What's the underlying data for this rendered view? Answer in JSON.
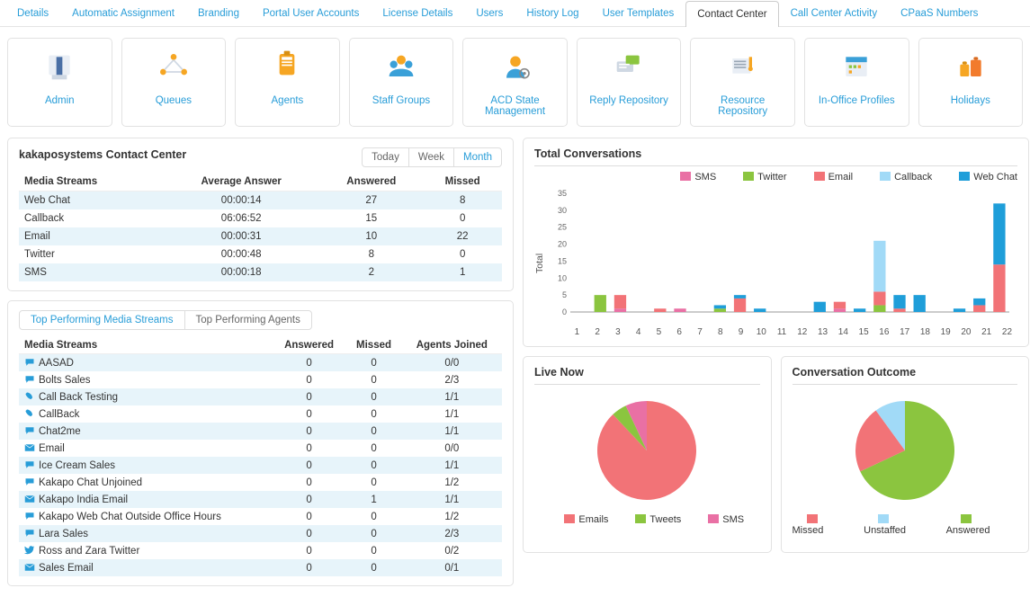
{
  "colors": {
    "link": "#289dd8",
    "border": "#e2e2e2",
    "stripe": "#e7f4fa",
    "sms": "#e970a4",
    "twitter": "#8bc53f",
    "email": "#f27377",
    "callback": "#a1daf7",
    "webchat": "#1f9ed9",
    "missed": "#f27377",
    "unstaffed": "#a1daf7",
    "answered": "#8bc53f"
  },
  "topTabs": {
    "items": [
      "Details",
      "Automatic Assignment",
      "Branding",
      "Portal User Accounts",
      "License Details",
      "Users",
      "History Log",
      "User Templates",
      "Contact Center",
      "Call Center Activity",
      "CPaaS Numbers"
    ],
    "activeIndex": 8
  },
  "iconCards": [
    {
      "key": "admin",
      "label": "Admin"
    },
    {
      "key": "queues",
      "label": "Queues"
    },
    {
      "key": "agents",
      "label": "Agents"
    },
    {
      "key": "staff",
      "label": "Staff Groups"
    },
    {
      "key": "acd",
      "label": "ACD State Management"
    },
    {
      "key": "reply",
      "label": "Reply Repository"
    },
    {
      "key": "resource",
      "label": "Resource Repository"
    },
    {
      "key": "inoffice",
      "label": "In-Office Profiles"
    },
    {
      "key": "holidays",
      "label": "Holidays"
    }
  ],
  "summary": {
    "title": "kakaposystems Contact Center",
    "ranges": [
      "Today",
      "Week",
      "Month"
    ],
    "rangeSelected": 2,
    "columns": [
      "Media Streams",
      "Average Answer",
      "Answered",
      "Missed"
    ],
    "rows": [
      [
        "Web Chat",
        "00:00:14",
        "27",
        "8"
      ],
      [
        "Callback",
        "06:06:52",
        "15",
        "0"
      ],
      [
        "Email",
        "00:00:31",
        "10",
        "22"
      ],
      [
        "Twitter",
        "00:00:48",
        "8",
        "0"
      ],
      [
        "SMS",
        "00:00:18",
        "2",
        "1"
      ]
    ]
  },
  "topPerf": {
    "tabs": [
      "Top Performing Media Streams",
      "Top Performing Agents"
    ],
    "tabSelected": 0,
    "columns": [
      "Media Streams",
      "Answered",
      "Missed",
      "Agents Joined"
    ],
    "rows": [
      {
        "icon": "chat",
        "name": "AASAD",
        "ans": "0",
        "mis": "0",
        "aj": "0/0"
      },
      {
        "icon": "chat",
        "name": "Bolts Sales",
        "ans": "0",
        "mis": "0",
        "aj": "2/3"
      },
      {
        "icon": "phone",
        "name": "Call Back Testing",
        "ans": "0",
        "mis": "0",
        "aj": "1/1"
      },
      {
        "icon": "phone",
        "name": "CallBack",
        "ans": "0",
        "mis": "0",
        "aj": "1/1"
      },
      {
        "icon": "chat",
        "name": "Chat2me",
        "ans": "0",
        "mis": "0",
        "aj": "1/1"
      },
      {
        "icon": "mail",
        "name": "Email",
        "ans": "0",
        "mis": "0",
        "aj": "0/0"
      },
      {
        "icon": "chat",
        "name": "Ice Cream Sales",
        "ans": "0",
        "mis": "0",
        "aj": "1/1"
      },
      {
        "icon": "chat",
        "name": "Kakapo Chat Unjoined",
        "ans": "0",
        "mis": "0",
        "aj": "1/2"
      },
      {
        "icon": "mail",
        "name": "Kakapo India Email",
        "ans": "0",
        "mis": "1",
        "aj": "1/1"
      },
      {
        "icon": "chat",
        "name": "Kakapo Web Chat Outside Office Hours",
        "ans": "0",
        "mis": "0",
        "aj": "1/2"
      },
      {
        "icon": "chat",
        "name": "Lara Sales",
        "ans": "0",
        "mis": "0",
        "aj": "2/3"
      },
      {
        "icon": "twitter",
        "name": "Ross and Zara Twitter",
        "ans": "0",
        "mis": "0",
        "aj": "0/2"
      },
      {
        "icon": "mail",
        "name": "Sales Email",
        "ans": "0",
        "mis": "0",
        "aj": "0/1"
      }
    ]
  },
  "totalConv": {
    "title": "Total Conversations",
    "ylabel": "Total",
    "ylim": [
      0,
      35
    ],
    "ytick_step": 5,
    "categories": [
      "1",
      "2",
      "3",
      "4",
      "5",
      "6",
      "7",
      "8",
      "9",
      "10",
      "11",
      "12",
      "13",
      "14",
      "15",
      "16",
      "17",
      "18",
      "19",
      "20",
      "21",
      "22"
    ],
    "seriesOrder": [
      "sms",
      "twitter",
      "email",
      "callback",
      "webchat"
    ],
    "legend": [
      {
        "key": "sms",
        "label": "SMS"
      },
      {
        "key": "twitter",
        "label": "Twitter"
      },
      {
        "key": "email",
        "label": "Email"
      },
      {
        "key": "callback",
        "label": "Callback"
      },
      {
        "key": "webchat",
        "label": "Web Chat"
      }
    ],
    "data": {
      "sms": [
        0,
        0,
        1,
        0,
        0,
        1,
        0,
        0,
        0,
        0,
        0,
        0,
        0,
        1,
        0,
        0,
        0,
        0,
        0,
        0,
        0,
        0
      ],
      "twitter": [
        0,
        5,
        0,
        0,
        0,
        0,
        0,
        1,
        0,
        0,
        0,
        0,
        0,
        0,
        0,
        2,
        0,
        0,
        0,
        0,
        0,
        0
      ],
      "email": [
        0,
        0,
        4,
        0,
        1,
        0,
        0,
        0,
        4,
        0,
        0,
        0,
        0,
        2,
        0,
        4,
        1,
        0,
        0,
        0,
        2,
        14
      ],
      "callback": [
        0,
        0,
        0,
        0,
        0,
        0,
        0,
        0,
        0,
        0,
        0,
        0,
        0,
        0,
        0,
        15,
        0,
        0,
        0,
        0,
        0,
        0
      ],
      "webchat": [
        0,
        0,
        0,
        0,
        0,
        0,
        0,
        1,
        1,
        1,
        0,
        0,
        3,
        0,
        1,
        0,
        4,
        5,
        0,
        1,
        2,
        18
      ]
    }
  },
  "liveNow": {
    "title": "Live Now",
    "legend": [
      {
        "key": "email",
        "label": "Emails"
      },
      {
        "key": "twitter",
        "label": "Tweets"
      },
      {
        "key": "sms",
        "label": "SMS"
      }
    ],
    "slices": [
      {
        "key": "email",
        "value": 88
      },
      {
        "key": "twitter",
        "value": 5
      },
      {
        "key": "sms",
        "value": 7
      }
    ]
  },
  "outcome": {
    "title": "Conversation Outcome",
    "legend": [
      {
        "key": "missed",
        "label": "Missed"
      },
      {
        "key": "unstaffed",
        "label": "Unstaffed"
      },
      {
        "key": "answered",
        "label": "Answered"
      }
    ],
    "slices": [
      {
        "key": "answered",
        "value": 68
      },
      {
        "key": "missed",
        "value": 22
      },
      {
        "key": "unstaffed",
        "value": 10
      }
    ]
  }
}
